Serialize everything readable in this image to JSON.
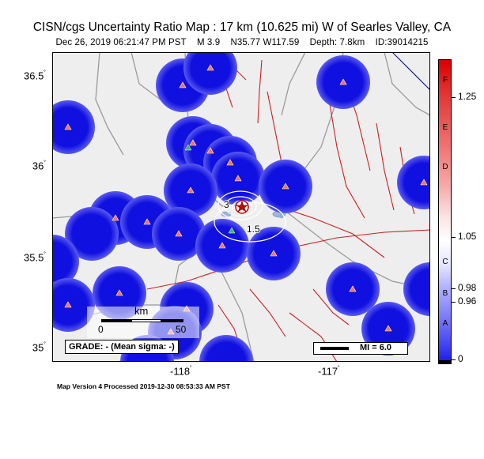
{
  "title": "CISN/cgs Uncertainty Ratio Map : 17 km (10.625 mi) W of Searles Valley, CA",
  "subtitle": {
    "datetime": "Dec 26, 2019 06:21:47 PM PST",
    "magnitude": "M 3.9",
    "location": "N35.77 W117.59",
    "depth": "Depth: 7.8km",
    "id": "ID:39014215"
  },
  "axes": {
    "y_labels": [
      "36.5",
      "36",
      "35.5",
      "35"
    ],
    "x_labels": [
      "-118",
      "-117"
    ],
    "degree_symbol": "˚"
  },
  "contour_labels": [
    "3",
    "1.5"
  ],
  "scale_bar": {
    "unit": "km",
    "start": "0",
    "end": "50"
  },
  "grade_box": "GRADE: - (Mean sigma: -)",
  "mi_legend": "MI = 6.0",
  "colorbar": {
    "letters": [
      "F",
      "E",
      "D",
      "C",
      "B",
      "A"
    ],
    "values": [
      "1.25",
      "1.05",
      "0.98",
      "0.96",
      "0"
    ],
    "colors": {
      "top": "#d90000",
      "middle": "#ffffff",
      "bottom": "#2020e8"
    }
  },
  "colors": {
    "station_disk": "#1010e0",
    "station_marker": "#ff7050",
    "fault": "#cc2020",
    "road": "#999999",
    "background": "#eeeeee"
  },
  "footer": "Map Version 4 Processed 2019-12-30 08:53:33 AM PST"
}
